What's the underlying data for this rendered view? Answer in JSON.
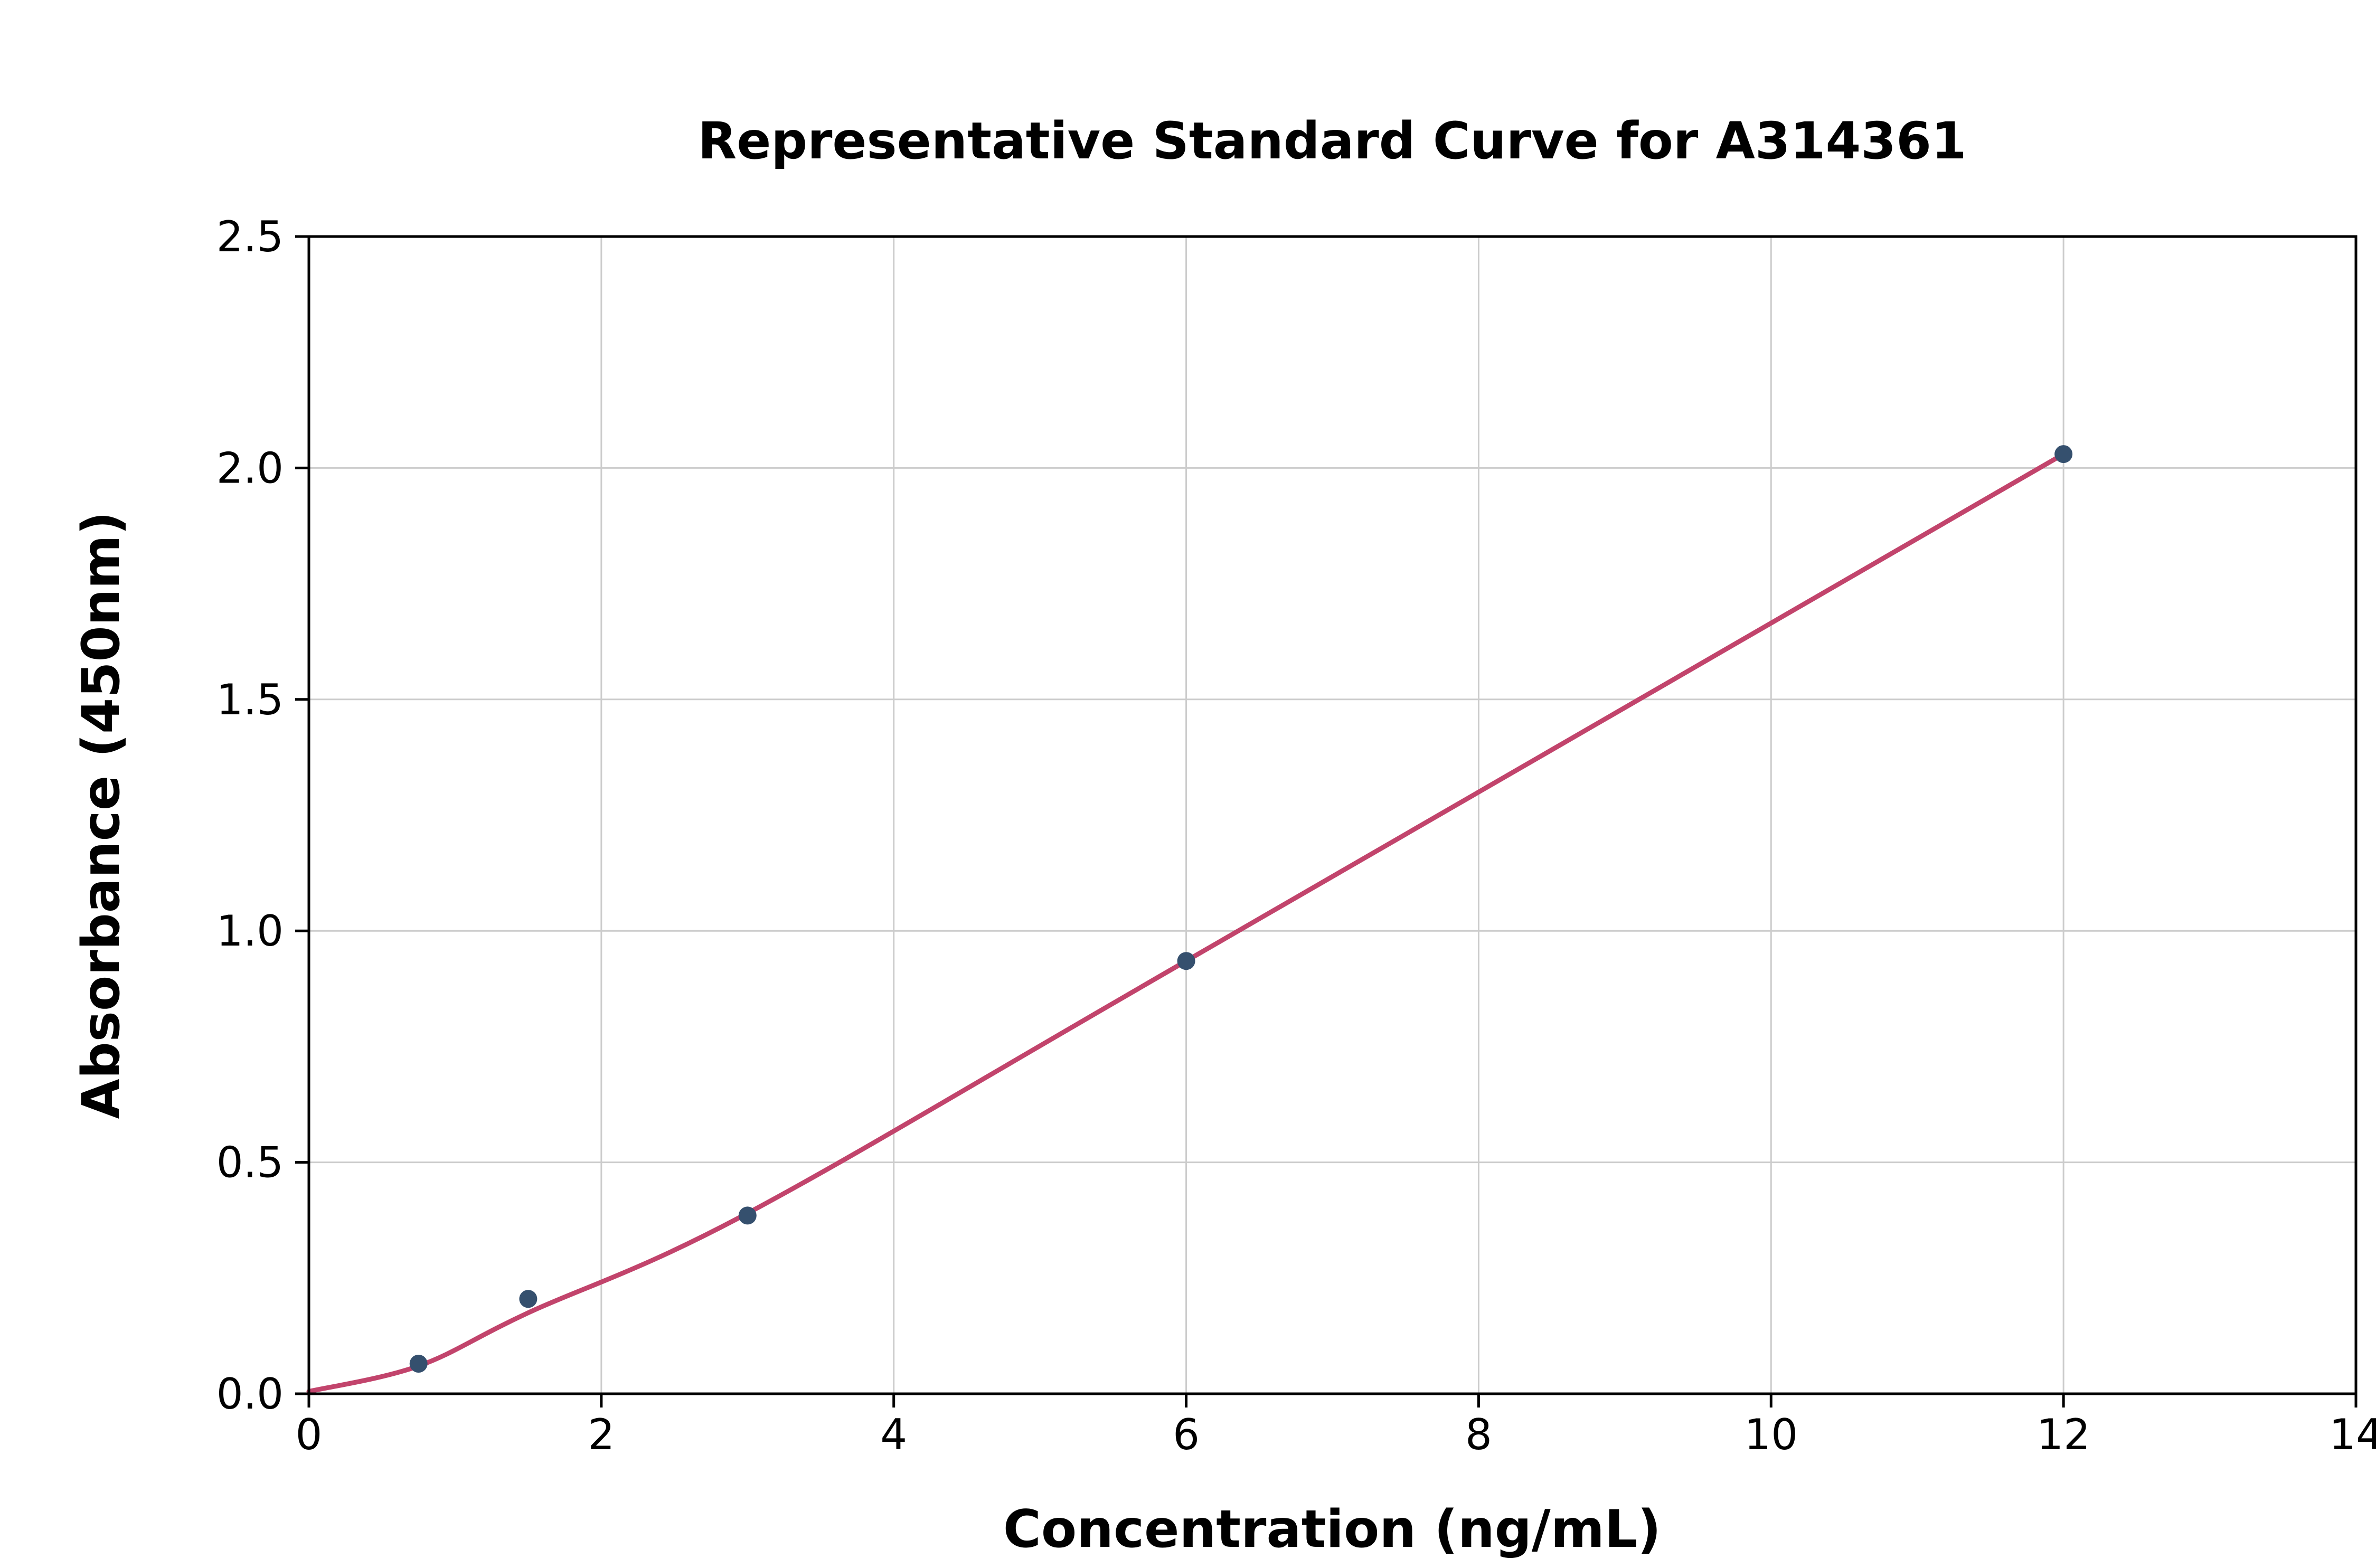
{
  "page": {
    "background": "#ffffff"
  },
  "chart_data": {
    "type": "scatter",
    "title": "Representative Standard Curve for A314361",
    "xlabel": "Concentration (ng/mL)",
    "ylabel": "Absorbance (450nm)",
    "xlim": [
      0,
      14
    ],
    "ylim": [
      0,
      2.5
    ],
    "x_ticks": [
      0,
      2,
      4,
      6,
      8,
      10,
      12,
      14
    ],
    "x_tick_labels": [
      "0",
      "2",
      "4",
      "6",
      "8",
      "10",
      "12",
      "14"
    ],
    "y_ticks": [
      0.0,
      0.5,
      1.0,
      1.5,
      2.0,
      2.5
    ],
    "y_tick_labels": [
      "0.0",
      "0.5",
      "1.0",
      "1.5",
      "2.0",
      "2.5"
    ],
    "grid": true,
    "legend": "none",
    "points": {
      "x": [
        0.75,
        1.5,
        3,
        6,
        12
      ],
      "y": [
        0.065,
        0.205,
        0.385,
        0.935,
        2.03
      ]
    },
    "fit_curve": {
      "x": [
        0,
        0.75,
        1.5,
        3,
        6,
        12
      ],
      "y": [
        0.005,
        0.06,
        0.175,
        0.39,
        0.935,
        2.03
      ]
    },
    "colors": {
      "point_color": "#35506e",
      "line_color": "#c2446c",
      "grid_color": "#cccccc",
      "axis_color": "#000000"
    }
  }
}
